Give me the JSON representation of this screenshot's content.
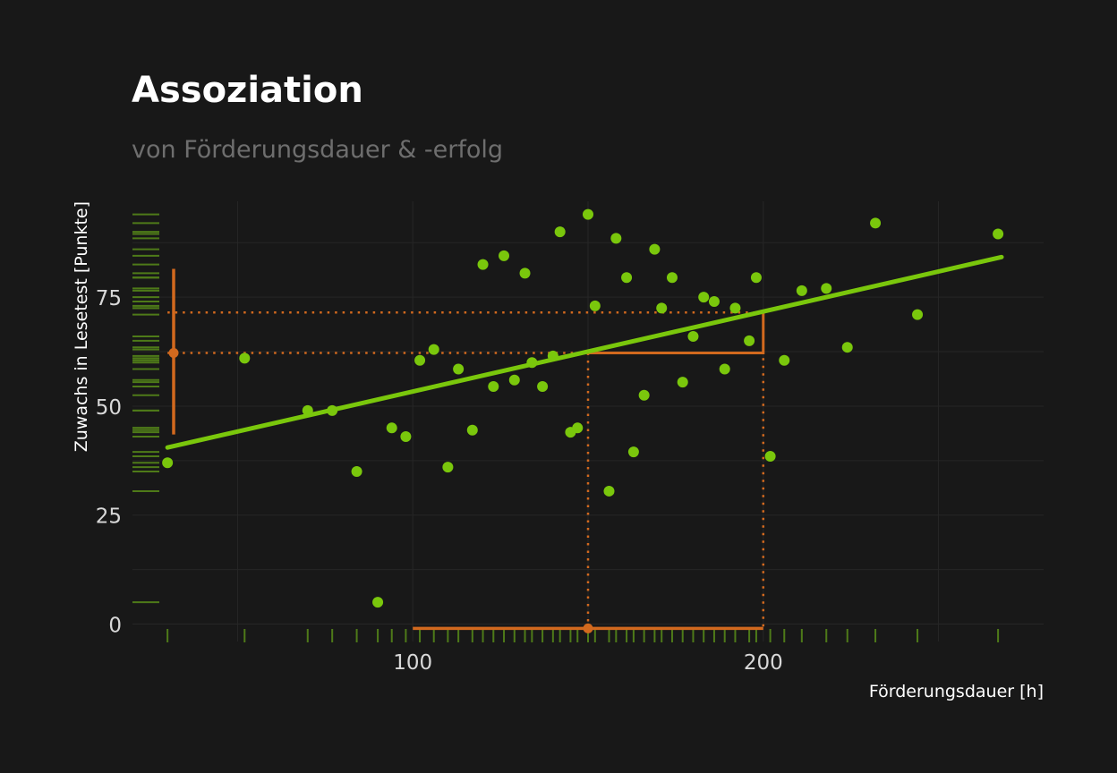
{
  "chart_data": {
    "type": "scatter",
    "title": "Assoziation",
    "subtitle": "von Förderungsdauer & -erfolg",
    "xlabel": "Förderungsdauer [h]",
    "ylabel": "Zuwachs in Lesetest [Punkte]",
    "xlim": [
      20,
      280
    ],
    "ylim": [
      -4,
      97
    ],
    "x_ticks": [
      100,
      200
    ],
    "y_ticks": [
      0,
      25,
      50,
      75
    ],
    "grid": true,
    "rug_plots": true,
    "colors": {
      "points": "#7ac70c",
      "regression": "#7ac70c",
      "annotation": "#d2691e",
      "rug": "#4e7a18",
      "grid": "#262626",
      "background": "#181818"
    },
    "regression": {
      "x": [
        30,
        268
      ],
      "y": [
        40.5,
        84.2
      ]
    },
    "points": [
      {
        "x": 30,
        "y": 37
      },
      {
        "x": 52,
        "y": 61
      },
      {
        "x": 70,
        "y": 49
      },
      {
        "x": 77,
        "y": 49
      },
      {
        "x": 84,
        "y": 35
      },
      {
        "x": 90,
        "y": 5
      },
      {
        "x": 94,
        "y": 45
      },
      {
        "x": 98,
        "y": 43
      },
      {
        "x": 102,
        "y": 60.5
      },
      {
        "x": 106,
        "y": 63
      },
      {
        "x": 110,
        "y": 36
      },
      {
        "x": 113,
        "y": 58.5
      },
      {
        "x": 117,
        "y": 44.5
      },
      {
        "x": 120,
        "y": 82.5
      },
      {
        "x": 123,
        "y": 54.5
      },
      {
        "x": 126,
        "y": 84.5
      },
      {
        "x": 129,
        "y": 56
      },
      {
        "x": 132,
        "y": 80.5
      },
      {
        "x": 134,
        "y": 60
      },
      {
        "x": 137,
        "y": 54.5
      },
      {
        "x": 140,
        "y": 61.5
      },
      {
        "x": 142,
        "y": 90
      },
      {
        "x": 145,
        "y": 44
      },
      {
        "x": 147,
        "y": 45
      },
      {
        "x": 150,
        "y": 94
      },
      {
        "x": 152,
        "y": 73
      },
      {
        "x": 156,
        "y": 30.5
      },
      {
        "x": 158,
        "y": 88.5
      },
      {
        "x": 161,
        "y": 79.5
      },
      {
        "x": 163,
        "y": 39.5
      },
      {
        "x": 166,
        "y": 52.5
      },
      {
        "x": 169,
        "y": 86
      },
      {
        "x": 171,
        "y": 72.5
      },
      {
        "x": 174,
        "y": 79.5
      },
      {
        "x": 177,
        "y": 55.5
      },
      {
        "x": 180,
        "y": 66
      },
      {
        "x": 183,
        "y": 75
      },
      {
        "x": 186,
        "y": 74
      },
      {
        "x": 189,
        "y": 58.5
      },
      {
        "x": 192,
        "y": 72.5
      },
      {
        "x": 196,
        "y": 65
      },
      {
        "x": 198,
        "y": 79.5
      },
      {
        "x": 202,
        "y": 38.5
      },
      {
        "x": 206,
        "y": 60.5
      },
      {
        "x": 211,
        "y": 76.5
      },
      {
        "x": 218,
        "y": 77
      },
      {
        "x": 224,
        "y": 63.5
      },
      {
        "x": 232,
        "y": 92
      },
      {
        "x": 244,
        "y": 71
      },
      {
        "x": 267,
        "y": 89.5
      }
    ],
    "annotations": {
      "x_mean": 150,
      "y_mean": 62.2,
      "x_interval": [
        100,
        200
      ],
      "y_interval": [
        43.5,
        81.5
      ],
      "fit_at_x_mean": 62.2,
      "fit_at_x_200": 71.5,
      "slope_triangle_x": [
        150,
        200
      ]
    }
  }
}
